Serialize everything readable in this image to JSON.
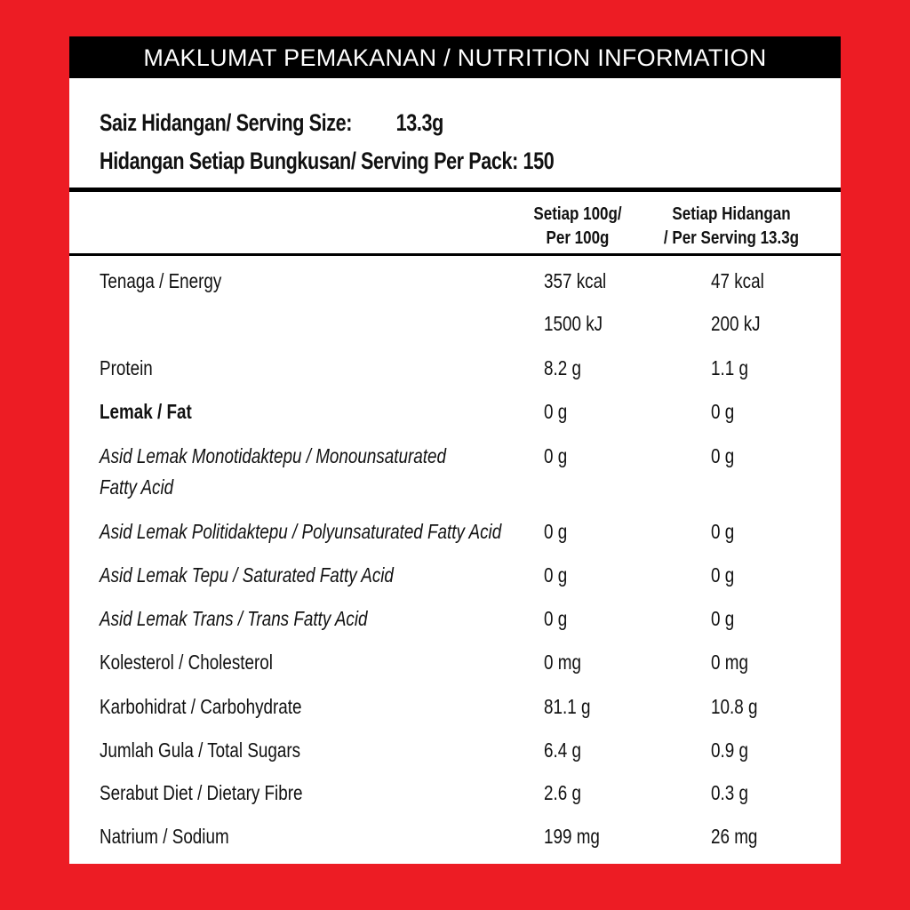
{
  "title": "MAKLUMAT PEMAKANAN / NUTRITION INFORMATION",
  "serving_size": {
    "label": "Saiz Hidangan/ Serving Size:",
    "value": "13.3g"
  },
  "servings_per_pack": {
    "label": "Hidangan Setiap Bungkusan/ Serving Per Pack:",
    "value": "150"
  },
  "columns": [
    {
      "line1": "Setiap 100g/",
      "line2": "Per 100g"
    },
    {
      "line1": "Setiap Hidangan",
      "line2": "/ Per Serving 13.3g"
    }
  ],
  "colors": {
    "border": "#ED1C24",
    "title_bg": "#000000",
    "title_text": "#FFFFFF"
  },
  "rows": [
    {
      "label": "Tenaga / Energy",
      "per100": "357 kcal",
      "perserving": "47 kcal",
      "style": "normal"
    },
    {
      "label": "",
      "per100": "1500 kJ",
      "perserving": "200 kJ",
      "style": "normal"
    },
    {
      "label": "Protein",
      "per100": "8.2 g",
      "perserving": "1.1 g",
      "style": "normal"
    },
    {
      "label": "Lemak / Fat",
      "per100": "0 g",
      "perserving": "0 g",
      "style": "bold"
    },
    {
      "label": "Asid Lemak Monotidaktepu / Monounsaturated",
      "label2": "Fatty Acid",
      "per100": "0 g",
      "perserving": "0 g",
      "style": "italic"
    },
    {
      "label": "Asid Lemak Politidaktepu / Polyunsaturated Fatty Acid",
      "per100": "0 g",
      "perserving": "0 g",
      "style": "italic"
    },
    {
      "label": "Asid Lemak Tepu / Saturated Fatty Acid",
      "per100": "0 g",
      "perserving": "0 g",
      "style": "italic"
    },
    {
      "label": "Asid Lemak Trans / Trans Fatty Acid",
      "per100": "0 g",
      "perserving": "0 g",
      "style": "italic"
    },
    {
      "label": "Kolesterol / Cholesterol",
      "per100": "0 mg",
      "perserving": "0 mg",
      "style": "normal"
    },
    {
      "label": "Karbohidrat / Carbohydrate",
      "per100": "81.1 g",
      "perserving": "10.8 g",
      "style": "normal"
    },
    {
      "label": "Jumlah Gula / Total Sugars",
      "per100": "6.4 g",
      "perserving": "0.9 g",
      "style": "normal"
    },
    {
      "label": "Serabut Diet / Dietary Fibre",
      "per100": "2.6 g",
      "perserving": "0.3 g",
      "style": "normal"
    },
    {
      "label": "Natrium / Sodium",
      "per100": "199 mg",
      "perserving": "26 mg",
      "style": "normal"
    }
  ]
}
